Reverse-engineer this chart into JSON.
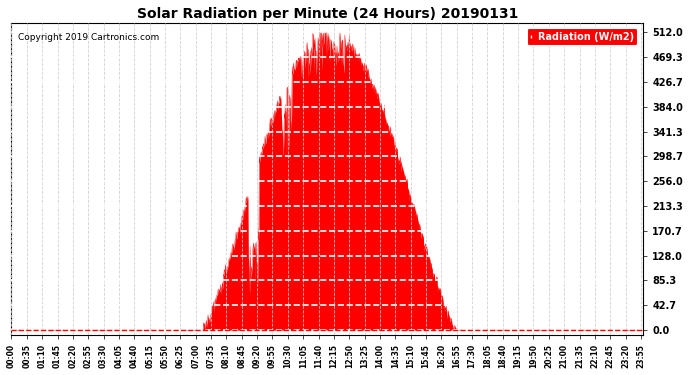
{
  "title": "Solar Radiation per Minute (24 Hours) 20190131",
  "copyright_text": "Copyright 2019 Cartronics.com",
  "legend_label": "Radiation (W/m2)",
  "fill_color": "#FF0000",
  "line_color": "#FF0000",
  "background_color": "#FFFFFF",
  "grid_color_x": "#CCCCCC",
  "grid_color_y": "#FFFFFF",
  "zero_line_color": "#FF0000",
  "yticks": [
    0.0,
    42.7,
    85.3,
    128.0,
    170.7,
    213.3,
    256.0,
    298.7,
    341.3,
    384.0,
    426.7,
    469.3,
    512.0
  ],
  "ymax": 512.0,
  "ymin": 0.0,
  "total_minutes": 1440,
  "sunrise_minute": 435,
  "sunset_minute": 1015,
  "peak_minute": 725,
  "peak_value": 512.0,
  "xtick_interval_minutes": 35
}
